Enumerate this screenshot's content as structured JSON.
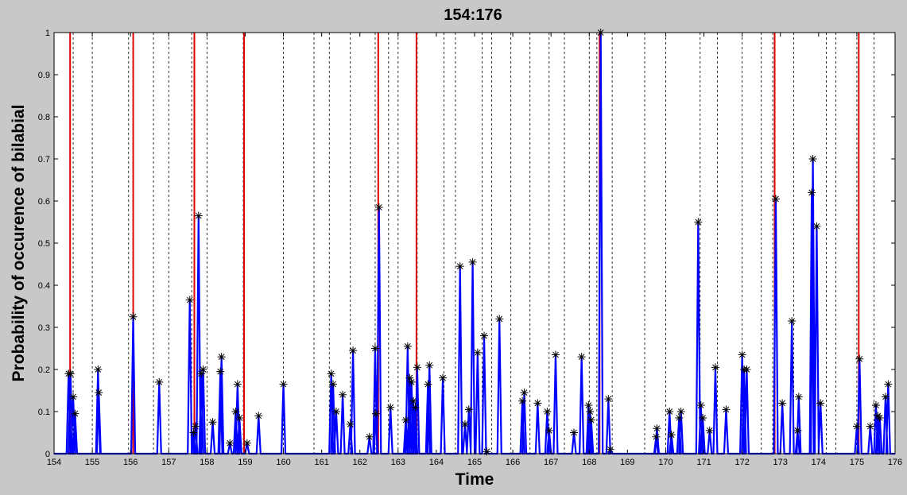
{
  "chart_data": {
    "type": "line",
    "title": "154:176",
    "xlabel": "Time",
    "ylabel": "Probability of occurence of bilabial",
    "xlim": [
      154,
      176
    ],
    "ylim": [
      0,
      1
    ],
    "x_ticks": [
      "154",
      "155",
      "156",
      "157",
      "158",
      "159",
      "160",
      "161",
      "162",
      "163",
      "164",
      "165",
      "166",
      "167",
      "168",
      "169",
      "170",
      "171",
      "172",
      "173",
      "174",
      "175",
      "176"
    ],
    "y_ticks": [
      "0",
      "0.1",
      "0.2",
      "0.3",
      "0.4",
      "0.5",
      "0.6",
      "0.7",
      "0.8",
      "0.9",
      "1"
    ],
    "colors": {
      "series": "#0000ff",
      "event": "#dd0000",
      "marker": "#000000",
      "grid": "#000000",
      "figure_bg": "#c8c8c8",
      "axes_bg": "#ffffff"
    },
    "dashed_boundaries": [
      154.5,
      155.0,
      155.95,
      156.6,
      157.0,
      157.6,
      158.0,
      158.95,
      160.0,
      160.8,
      161.2,
      161.75,
      162.4,
      162.75,
      163.0,
      163.5,
      164.2,
      164.5,
      165.2,
      165.45,
      165.95,
      166.45,
      166.95,
      167.35,
      168.0,
      168.2,
      168.6,
      169.45,
      170.0,
      170.9,
      171.35,
      172.0,
      172.5,
      172.8,
      173.35,
      174.2,
      174.45,
      175.0,
      175.45
    ],
    "red_events": [
      154.42,
      156.07,
      157.67,
      158.97,
      162.48,
      163.48,
      168.27,
      172.85,
      175.05
    ],
    "markers": [
      {
        "x": 154.38,
        "y": 0.19
      },
      {
        "x": 154.43,
        "y": 0.19
      },
      {
        "x": 154.5,
        "y": 0.135
      },
      {
        "x": 154.55,
        "y": 0.095
      },
      {
        "x": 155.15,
        "y": 0.2
      },
      {
        "x": 155.17,
        "y": 0.145
      },
      {
        "x": 156.07,
        "y": 0.325
      },
      {
        "x": 156.75,
        "y": 0.17
      },
      {
        "x": 157.55,
        "y": 0.365
      },
      {
        "x": 157.65,
        "y": 0.05
      },
      {
        "x": 157.7,
        "y": 0.065
      },
      {
        "x": 157.78,
        "y": 0.565
      },
      {
        "x": 157.85,
        "y": 0.19
      },
      {
        "x": 157.9,
        "y": 0.2
      },
      {
        "x": 158.15,
        "y": 0.075
      },
      {
        "x": 158.35,
        "y": 0.195
      },
      {
        "x": 158.38,
        "y": 0.23
      },
      {
        "x": 158.6,
        "y": 0.025
      },
      {
        "x": 158.75,
        "y": 0.1
      },
      {
        "x": 158.8,
        "y": 0.165
      },
      {
        "x": 158.85,
        "y": 0.085
      },
      {
        "x": 159.05,
        "y": 0.025
      },
      {
        "x": 159.35,
        "y": 0.09
      },
      {
        "x": 160.0,
        "y": 0.165
      },
      {
        "x": 161.25,
        "y": 0.19
      },
      {
        "x": 161.3,
        "y": 0.165
      },
      {
        "x": 161.38,
        "y": 0.1
      },
      {
        "x": 161.55,
        "y": 0.14
      },
      {
        "x": 161.75,
        "y": 0.07
      },
      {
        "x": 161.82,
        "y": 0.245
      },
      {
        "x": 162.25,
        "y": 0.04
      },
      {
        "x": 162.4,
        "y": 0.25
      },
      {
        "x": 162.42,
        "y": 0.095
      },
      {
        "x": 162.5,
        "y": 0.585
      },
      {
        "x": 162.8,
        "y": 0.11
      },
      {
        "x": 163.2,
        "y": 0.08
      },
      {
        "x": 163.25,
        "y": 0.255
      },
      {
        "x": 163.3,
        "y": 0.18
      },
      {
        "x": 163.35,
        "y": 0.17
      },
      {
        "x": 163.4,
        "y": 0.125
      },
      {
        "x": 163.45,
        "y": 0.11
      },
      {
        "x": 163.5,
        "y": 0.205
      },
      {
        "x": 163.78,
        "y": 0.165
      },
      {
        "x": 163.82,
        "y": 0.21
      },
      {
        "x": 164.17,
        "y": 0.18
      },
      {
        "x": 164.62,
        "y": 0.445
      },
      {
        "x": 164.75,
        "y": 0.07
      },
      {
        "x": 164.85,
        "y": 0.105
      },
      {
        "x": 164.95,
        "y": 0.455
      },
      {
        "x": 165.08,
        "y": 0.24
      },
      {
        "x": 165.25,
        "y": 0.28
      },
      {
        "x": 165.32,
        "y": 0.005
      },
      {
        "x": 165.65,
        "y": 0.32
      },
      {
        "x": 166.25,
        "y": 0.125
      },
      {
        "x": 166.3,
        "y": 0.145
      },
      {
        "x": 166.65,
        "y": 0.12
      },
      {
        "x": 166.9,
        "y": 0.1
      },
      {
        "x": 166.95,
        "y": 0.055
      },
      {
        "x": 167.12,
        "y": 0.235
      },
      {
        "x": 167.6,
        "y": 0.05
      },
      {
        "x": 167.8,
        "y": 0.23
      },
      {
        "x": 167.98,
        "y": 0.115
      },
      {
        "x": 168.02,
        "y": 0.1
      },
      {
        "x": 168.05,
        "y": 0.08
      },
      {
        "x": 168.3,
        "y": 1.0
      },
      {
        "x": 168.5,
        "y": 0.13
      },
      {
        "x": 168.55,
        "y": 0.01
      },
      {
        "x": 169.75,
        "y": 0.04
      },
      {
        "x": 169.77,
        "y": 0.06
      },
      {
        "x": 170.1,
        "y": 0.1
      },
      {
        "x": 170.15,
        "y": 0.045
      },
      {
        "x": 170.35,
        "y": 0.085
      },
      {
        "x": 170.4,
        "y": 0.1
      },
      {
        "x": 170.85,
        "y": 0.55
      },
      {
        "x": 170.92,
        "y": 0.115
      },
      {
        "x": 170.97,
        "y": 0.085
      },
      {
        "x": 171.15,
        "y": 0.055
      },
      {
        "x": 171.3,
        "y": 0.205
      },
      {
        "x": 171.58,
        "y": 0.105
      },
      {
        "x": 172.0,
        "y": 0.235
      },
      {
        "x": 172.05,
        "y": 0.2
      },
      {
        "x": 172.12,
        "y": 0.2
      },
      {
        "x": 172.88,
        "y": 0.605
      },
      {
        "x": 173.05,
        "y": 0.12
      },
      {
        "x": 173.3,
        "y": 0.315
      },
      {
        "x": 173.45,
        "y": 0.055
      },
      {
        "x": 173.48,
        "y": 0.135
      },
      {
        "x": 173.82,
        "y": 0.62
      },
      {
        "x": 173.85,
        "y": 0.7
      },
      {
        "x": 173.95,
        "y": 0.54
      },
      {
        "x": 174.05,
        "y": 0.12
      },
      {
        "x": 175.0,
        "y": 0.065
      },
      {
        "x": 175.07,
        "y": 0.225
      },
      {
        "x": 175.35,
        "y": 0.065
      },
      {
        "x": 175.5,
        "y": 0.115
      },
      {
        "x": 175.55,
        "y": 0.09
      },
      {
        "x": 175.6,
        "y": 0.085
      },
      {
        "x": 175.75,
        "y": 0.135
      },
      {
        "x": 175.82,
        "y": 0.165
      }
    ]
  }
}
